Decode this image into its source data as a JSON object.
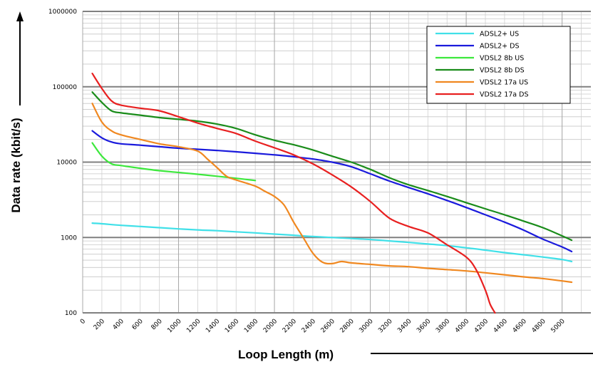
{
  "chart_data": {
    "type": "line",
    "title": "",
    "xlabel": "Loop Length (m)",
    "ylabel": "Data rate (kbit/s)",
    "y_scale": "log",
    "ylim": [
      100,
      1000000
    ],
    "xlim": [
      0,
      5300
    ],
    "grid": true,
    "legend_position": "top-right",
    "x_tick_labels": [
      "0",
      "200",
      "400",
      "600",
      "800",
      "1000",
      "1200",
      "1400",
      "1600",
      "1800",
      "2000",
      "2200",
      "2400",
      "2600",
      "2800",
      "3000",
      "3200",
      "3400",
      "3600",
      "3800",
      "4000",
      "4200",
      "4400",
      "4600",
      "4800",
      "5000"
    ],
    "y_tick_labels": [
      "100",
      "1000",
      "10000",
      "100000",
      "1000000"
    ],
    "series": [
      {
        "name": "ADSL2+ US",
        "color": "#40e0e8",
        "x": [
          100,
          200,
          400,
          600,
          800,
          1000,
          1200,
          1400,
          1600,
          1800,
          2000,
          2200,
          2400,
          2600,
          2800,
          3000,
          3200,
          3400,
          3600,
          3800,
          4000,
          4200,
          4400,
          4600,
          4800,
          5000,
          5100
        ],
        "y": [
          1550,
          1520,
          1450,
          1400,
          1350,
          1300,
          1260,
          1230,
          1190,
          1150,
          1110,
          1070,
          1030,
          1000,
          970,
          940,
          900,
          860,
          820,
          780,
          730,
          680,
          630,
          590,
          550,
          510,
          480
        ]
      },
      {
        "name": "ADSL2+ DS",
        "color": "#1a1adc",
        "x": [
          100,
          200,
          300,
          400,
          600,
          800,
          1000,
          1200,
          1400,
          1600,
          1800,
          2000,
          2200,
          2400,
          2600,
          2800,
          3000,
          3200,
          3400,
          3600,
          3800,
          4000,
          4200,
          4400,
          4600,
          4800,
          5000,
          5100
        ],
        "y": [
          26000,
          21000,
          18500,
          17500,
          16800,
          16000,
          15300,
          14800,
          14300,
          13700,
          13100,
          12500,
          11800,
          11000,
          10000,
          8700,
          7000,
          5600,
          4600,
          3800,
          3100,
          2500,
          2000,
          1600,
          1250,
          950,
          750,
          650
        ]
      },
      {
        "name": "VDSL2 8b US",
        "color": "#3ce83c",
        "x": [
          100,
          200,
          300,
          400,
          600,
          800,
          1000,
          1200,
          1400,
          1600,
          1800
        ],
        "y": [
          18000,
          12000,
          9500,
          9000,
          8300,
          7700,
          7300,
          6900,
          6500,
          6100,
          5700
        ]
      },
      {
        "name": "VDSL2 8b DS",
        "color": "#1a8c1a",
        "x": [
          100,
          200,
          300,
          400,
          600,
          800,
          1000,
          1200,
          1400,
          1600,
          1800,
          2000,
          2200,
          2400,
          2600,
          2800,
          3000,
          3200,
          3400,
          3600,
          3800,
          4000,
          4200,
          4400,
          4600,
          4800,
          5000,
          5100
        ],
        "y": [
          85000,
          62000,
          48000,
          45000,
          42000,
          39000,
          37000,
          35000,
          32000,
          28000,
          23000,
          19500,
          17000,
          14500,
          12000,
          10000,
          8000,
          6200,
          5000,
          4200,
          3500,
          2900,
          2400,
          2000,
          1650,
          1350,
          1050,
          920
        ]
      },
      {
        "name": "VDSL2 17a US",
        "color": "#f08820",
        "x": [
          100,
          200,
          300,
          400,
          600,
          800,
          1000,
          1200,
          1300,
          1400,
          1500,
          1600,
          1800,
          1900,
          2000,
          2100,
          2200,
          2300,
          2400,
          2500,
          2600,
          2700,
          2800,
          3000,
          3200,
          3400,
          3600,
          3800,
          4000,
          4200,
          4400,
          4600,
          4800,
          5000,
          5100
        ],
        "y": [
          60000,
          34000,
          26000,
          23000,
          20000,
          17500,
          16000,
          14000,
          11000,
          8500,
          6500,
          5800,
          4800,
          4100,
          3500,
          2700,
          1600,
          1000,
          620,
          470,
          450,
          480,
          460,
          440,
          420,
          410,
          390,
          375,
          360,
          340,
          320,
          300,
          285,
          265,
          255
        ]
      },
      {
        "name": "VDSL2 17a DS",
        "color": "#e82020",
        "x": [
          100,
          200,
          300,
          400,
          600,
          800,
          1000,
          1200,
          1400,
          1600,
          1800,
          2000,
          2200,
          2400,
          2600,
          2800,
          3000,
          3200,
          3400,
          3600,
          3800,
          4000,
          4100,
          4200,
          4250,
          4300
        ],
        "y": [
          150000,
          95000,
          65000,
          57000,
          52000,
          48000,
          40000,
          33000,
          28000,
          24000,
          19000,
          15500,
          12500,
          9500,
          6800,
          4700,
          3000,
          1800,
          1400,
          1150,
          800,
          550,
          380,
          200,
          130,
          100
        ]
      }
    ]
  }
}
